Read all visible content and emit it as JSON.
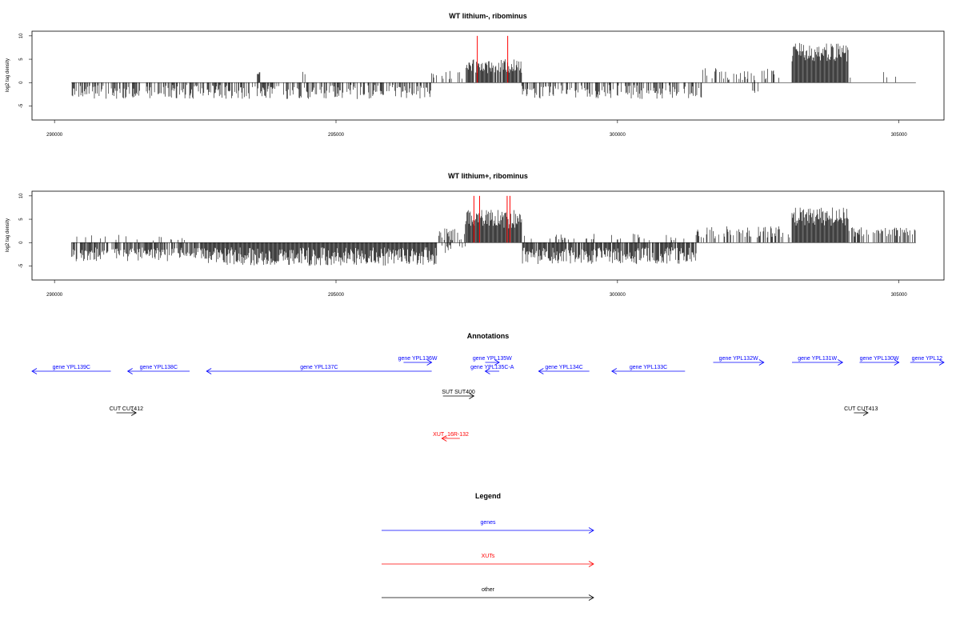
{
  "chart_data": [
    {
      "type": "bar",
      "title": "WT lithium-, ribominus",
      "ylabel": "log2 tag density",
      "xlim": [
        289600,
        305800
      ],
      "ylim": [
        -8,
        11
      ],
      "x_ticks": [
        "290000",
        "295000",
        "300000",
        "305000"
      ],
      "y_ticks": [
        "-5",
        "0",
        "5",
        "10"
      ],
      "baseline_range": [
        290300,
        305300
      ],
      "segments": [
        {
          "start": 290300,
          "end": 296700,
          "sign": -1,
          "density": 0.55,
          "mean": 2.0,
          "spread": 1.5
        },
        {
          "start": 293600,
          "end": 293650,
          "sign": 1,
          "density": 0.5,
          "mean": 2.0,
          "spread": 0.3
        },
        {
          "start": 294400,
          "end": 294450,
          "sign": 1,
          "density": 0.5,
          "mean": 2.0,
          "spread": 0.3
        },
        {
          "start": 296700,
          "end": 297300,
          "sign": 1,
          "density": 0.25,
          "mean": 1.5,
          "spread": 1.0
        },
        {
          "start": 297300,
          "end": 298300,
          "sign": 1,
          "density": 0.95,
          "mean": 3.5,
          "spread": 1.5
        },
        {
          "start": 298300,
          "end": 301500,
          "sign": -1,
          "density": 0.45,
          "mean": 2.0,
          "spread": 1.5
        },
        {
          "start": 301500,
          "end": 302900,
          "sign": 1,
          "density": 0.3,
          "mean": 1.8,
          "spread": 1.3
        },
        {
          "start": 302400,
          "end": 302500,
          "sign": -1,
          "density": 0.5,
          "mean": 2.0,
          "spread": 0.3
        },
        {
          "start": 303100,
          "end": 304100,
          "sign": 1,
          "density": 1.0,
          "mean": 6.5,
          "spread": 2.0
        },
        {
          "start": 304100,
          "end": 305300,
          "sign": 1,
          "density": 0.05,
          "mean": 1.8,
          "spread": 0.8
        }
      ],
      "red_lines": [
        297510,
        298050
      ]
    },
    {
      "type": "bar",
      "title": "WT lithium+, ribominus",
      "ylabel": "log2 tag density",
      "xlim": [
        289600,
        305800
      ],
      "ylim": [
        -8,
        11
      ],
      "x_ticks": [
        "290000",
        "295000",
        "300000",
        "305000"
      ],
      "y_ticks": [
        "-5",
        "0",
        "5",
        "10"
      ],
      "baseline_range": [
        290300,
        305300
      ],
      "segments": [
        {
          "start": 290300,
          "end": 292600,
          "sign": -1,
          "density": 0.7,
          "mean": 2.5,
          "spread": 1.5
        },
        {
          "start": 290300,
          "end": 292600,
          "sign": 1,
          "density": 0.1,
          "mean": 1.0,
          "spread": 0.7
        },
        {
          "start": 292600,
          "end": 296800,
          "sign": -1,
          "density": 1.0,
          "mean": 3.0,
          "spread": 2.0
        },
        {
          "start": 296800,
          "end": 297300,
          "sign": 1,
          "density": 0.4,
          "mean": 2.0,
          "spread": 1.5
        },
        {
          "start": 296800,
          "end": 297300,
          "sign": -1,
          "density": 0.3,
          "mean": 1.5,
          "spread": 1.0
        },
        {
          "start": 297300,
          "end": 298300,
          "sign": 1,
          "density": 1.0,
          "mean": 5.0,
          "spread": 2.0
        },
        {
          "start": 298300,
          "end": 301400,
          "sign": -1,
          "density": 0.9,
          "mean": 2.8,
          "spread": 1.8
        },
        {
          "start": 298300,
          "end": 301400,
          "sign": 1,
          "density": 0.12,
          "mean": 1.2,
          "spread": 0.7
        },
        {
          "start": 301400,
          "end": 302900,
          "sign": 1,
          "density": 0.45,
          "mean": 2.2,
          "spread": 1.3
        },
        {
          "start": 302900,
          "end": 303100,
          "sign": 1,
          "density": 0.3,
          "mean": 1.5,
          "spread": 1.0
        },
        {
          "start": 303100,
          "end": 304100,
          "sign": 1,
          "density": 1.0,
          "mean": 5.5,
          "spread": 2.0
        },
        {
          "start": 304100,
          "end": 305300,
          "sign": 1,
          "density": 0.55,
          "mean": 2.3,
          "spread": 1.0
        }
      ],
      "red_lines": [
        297450,
        297550,
        298040,
        298090
      ]
    }
  ],
  "annotations": {
    "title": "Annotations",
    "colors": {
      "gene": "#0000ff",
      "xut": "#ff0000",
      "other": "#000000"
    },
    "features": [
      {
        "label": "gene YPL139C",
        "start": 289600,
        "end": 291000,
        "dir": "left",
        "type": "gene",
        "row": 2
      },
      {
        "label": "gene YPL138C",
        "start": 291300,
        "end": 292400,
        "dir": "left",
        "type": "gene",
        "row": 2
      },
      {
        "label": "gene YPL137C",
        "start": 292700,
        "end": 296700,
        "dir": "left",
        "type": "gene",
        "row": 2
      },
      {
        "label": "gene YPL136W",
        "start": 296200,
        "end": 296700,
        "dir": "right",
        "type": "gene",
        "row": 1
      },
      {
        "label": "gene YPL135W",
        "start": 297650,
        "end": 297900,
        "dir": "right",
        "type": "gene",
        "row": 1
      },
      {
        "label": "gene YPL135C-A",
        "start": 297650,
        "end": 297900,
        "dir": "left",
        "type": "gene",
        "row": 2
      },
      {
        "label": "gene YPL134C",
        "start": 298600,
        "end": 299500,
        "dir": "left",
        "type": "gene",
        "row": 2
      },
      {
        "label": "gene YPL133C",
        "start": 299900,
        "end": 301200,
        "dir": "left",
        "type": "gene",
        "row": 2
      },
      {
        "label": "gene YPL132W",
        "start": 301700,
        "end": 302600,
        "dir": "right",
        "type": "gene",
        "row": 1
      },
      {
        "label": "gene YPL131W",
        "start": 303100,
        "end": 304000,
        "dir": "right",
        "type": "gene",
        "row": 1
      },
      {
        "label": "gene YPL130W",
        "start": 304300,
        "end": 305000,
        "dir": "right",
        "type": "gene",
        "row": 1
      },
      {
        "label": "gene YPL12",
        "start": 305200,
        "end": 305800,
        "dir": "right",
        "type": "gene",
        "row": 1
      },
      {
        "label": "SUT SUT400",
        "start": 296900,
        "end": 297450,
        "dir": "right",
        "type": "other",
        "row": 3
      },
      {
        "label": "CUT CUT412",
        "start": 291100,
        "end": 291450,
        "dir": "right",
        "type": "other",
        "row": 4
      },
      {
        "label": "CUT CUT413",
        "start": 304200,
        "end": 304450,
        "dir": "right",
        "type": "other",
        "row": 4
      },
      {
        "label": "XUT_16R-132",
        "start": 296880,
        "end": 297200,
        "dir": "left",
        "type": "xut",
        "row": 5
      }
    ]
  },
  "legend": {
    "title": "Legend",
    "items": [
      {
        "label": "genes",
        "color": "#0000ff"
      },
      {
        "label": "XUTs",
        "color": "#ff0000"
      },
      {
        "label": "other",
        "color": "#000000"
      }
    ]
  }
}
